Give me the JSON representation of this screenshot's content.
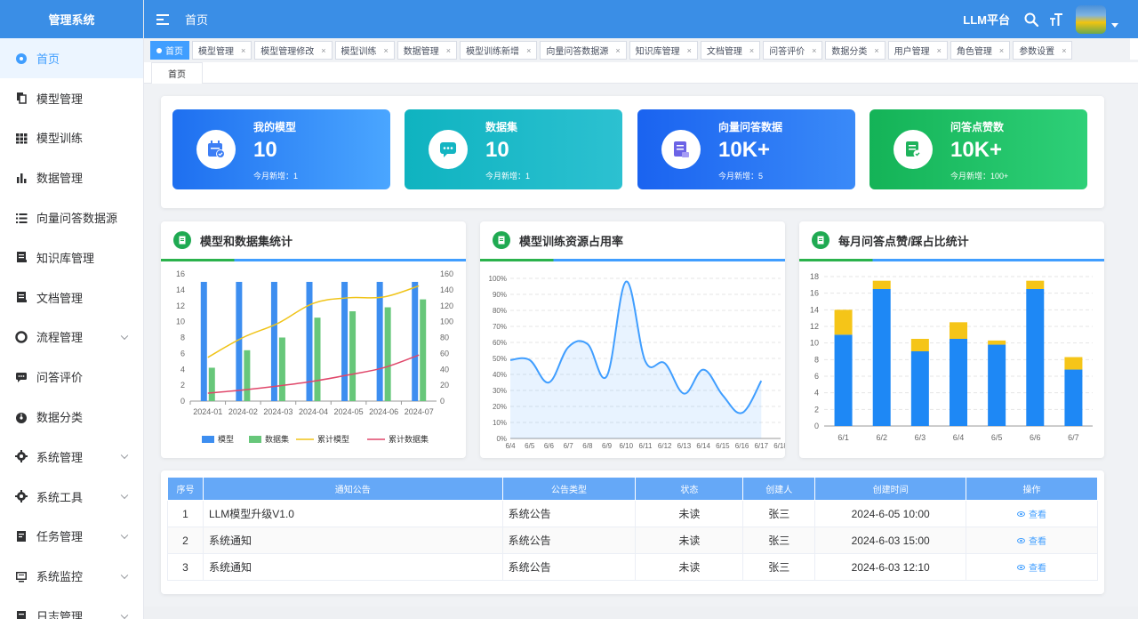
{
  "app": {
    "title": "管理系统",
    "platform": "LLM平台",
    "breadcrumb": "首页"
  },
  "sidebar": {
    "items": [
      {
        "label": "首页",
        "icon": "dashboard-icon",
        "active": true,
        "expandable": false
      },
      {
        "label": "模型管理",
        "icon": "copy-icon",
        "expandable": false
      },
      {
        "label": "模型训练",
        "icon": "grid-icon",
        "expandable": false
      },
      {
        "label": "数据管理",
        "icon": "bar-chart-icon",
        "expandable": false
      },
      {
        "label": "向量问答数据源",
        "icon": "list-icon",
        "expandable": false
      },
      {
        "label": "知识库管理",
        "icon": "book-icon",
        "expandable": false
      },
      {
        "label": "文档管理",
        "icon": "document-icon",
        "expandable": false
      },
      {
        "label": "流程管理",
        "icon": "circle-icon",
        "expandable": true
      },
      {
        "label": "问答评价",
        "icon": "comment-icon",
        "expandable": false
      },
      {
        "label": "数据分类",
        "icon": "gauge-icon",
        "expandable": false
      },
      {
        "label": "系统管理",
        "icon": "gear-icon",
        "expandable": true
      },
      {
        "label": "系统工具",
        "icon": "gear-icon",
        "expandable": true
      },
      {
        "label": "任务管理",
        "icon": "task-icon",
        "expandable": true
      },
      {
        "label": "系统监控",
        "icon": "monitor-icon",
        "expandable": true
      },
      {
        "label": "日志管理",
        "icon": "log-icon",
        "expandable": true
      }
    ]
  },
  "tags": [
    {
      "label": "首页",
      "active": true
    },
    {
      "label": "模型管理"
    },
    {
      "label": "模型管理修改"
    },
    {
      "label": "模型训练"
    },
    {
      "label": "数据管理"
    },
    {
      "label": "模型训练新增"
    },
    {
      "label": "向量问答数据源"
    },
    {
      "label": "知识库管理"
    },
    {
      "label": "文档管理"
    },
    {
      "label": "问答评价"
    },
    {
      "label": "数据分类"
    },
    {
      "label": "用户管理"
    },
    {
      "label": "角色管理"
    },
    {
      "label": "参数设置"
    }
  ],
  "subtab": "首页",
  "stats": [
    {
      "title": "我的模型",
      "value": "10",
      "sub": "今月新增：1",
      "gradient": [
        "#1e6ff0",
        "#4aa6ff"
      ],
      "icon": "calendar-icon",
      "icon_color": "#3d7ef5"
    },
    {
      "title": "数据集",
      "value": "10",
      "sub": "今月新增：1",
      "gradient": [
        "#0fb3c0",
        "#2cc1d1"
      ],
      "icon": "chat-icon",
      "icon_color": "#13b5c2"
    },
    {
      "title": "向量问答数据",
      "value": "10K+",
      "sub": "今月新增：5",
      "gradient": [
        "#1a63f0",
        "#3a8af8"
      ],
      "icon": "stack-icon",
      "icon_color": "#6c63e6"
    },
    {
      "title": "问答点赞数",
      "value": "10K+",
      "sub": "今月新增：100+",
      "gradient": [
        "#14b357",
        "#2ed078"
      ],
      "icon": "doc-check-icon",
      "icon_color": "#1fb35c"
    }
  ],
  "charts": {
    "c1": {
      "title": "模型和数据集统计"
    },
    "c2": {
      "title": "模型训练资源占用率"
    },
    "c3": {
      "title": "每月问答点赞/踩占比统计"
    }
  },
  "chart_data": [
    {
      "type": "bar",
      "title": "模型和数据集统计",
      "categories": [
        "2024-01",
        "2024-02",
        "2024-03",
        "2024-04",
        "2024-05",
        "2024-06",
        "2024-07"
      ],
      "series": [
        {
          "name": "模型",
          "type": "bar",
          "axis": "left",
          "color": "#3d8ef0",
          "values": [
            15,
            15,
            15,
            15,
            15,
            15,
            15
          ]
        },
        {
          "name": "数据集",
          "type": "bar",
          "axis": "left",
          "color": "#67c77a",
          "values": [
            4.2,
            6.4,
            8,
            10.5,
            11.3,
            11.8,
            12.8
          ]
        },
        {
          "name": "累计模型",
          "type": "line",
          "axis": "right",
          "color": "#f0c419",
          "values": [
            55,
            80,
            98,
            123,
            130,
            131,
            145
          ]
        },
        {
          "name": "累计数据集",
          "type": "line",
          "axis": "right",
          "color": "#e0476a",
          "values": [
            10,
            14,
            19,
            25,
            33,
            42,
            58
          ]
        }
      ],
      "y_left": {
        "ticks": [
          "0",
          "2",
          "4",
          "6",
          "8",
          "10",
          "12",
          "14",
          "16"
        ],
        "range": [
          0,
          16
        ]
      },
      "y_right": {
        "ticks": [
          "0",
          "20",
          "40",
          "60",
          "80",
          "100",
          "120",
          "140",
          "160"
        ],
        "range": [
          0,
          160
        ]
      },
      "legend": "bottom",
      "grid": false
    },
    {
      "type": "area",
      "title": "模型训练资源占用率",
      "x": [
        "6/4",
        "6/5",
        "6/6",
        "6/7",
        "6/8",
        "6/9",
        "6/10",
        "6/11",
        "6/12",
        "6/13",
        "6/14",
        "6/15",
        "6/16",
        "6/17",
        "6/18"
      ],
      "values": [
        49,
        49,
        35,
        57,
        59,
        39,
        98,
        48,
        47,
        28,
        43,
        27,
        16,
        36,
        null
      ],
      "y_ticks": [
        "0%",
        "10%",
        "20%",
        "30%",
        "40%",
        "50%",
        "60%",
        "70%",
        "80%",
        "90%",
        "100%"
      ],
      "ylim": [
        0,
        100
      ],
      "color": "#409eff",
      "grid": true
    },
    {
      "type": "bar",
      "stacked": true,
      "title": "每月问答点赞/踩占比统计",
      "categories": [
        "6/1",
        "6/2",
        "6/3",
        "6/4",
        "6/5",
        "6/6",
        "6/7"
      ],
      "series": [
        {
          "color": "#1e88f5",
          "values": [
            11,
            16.5,
            9,
            10.5,
            9.8,
            16.5,
            6.8
          ]
        },
        {
          "color": "#f5c518",
          "values": [
            3,
            1,
            1.5,
            2,
            0.5,
            1,
            1.5
          ]
        }
      ],
      "y_ticks": [
        "0",
        "2",
        "4",
        "6",
        "8",
        "10",
        "12",
        "14",
        "16",
        "18"
      ],
      "ylim": [
        0,
        18
      ],
      "grid": true
    }
  ],
  "table": {
    "headers": [
      "序号",
      "通知公告",
      "公告类型",
      "状态",
      "创建人",
      "创建时间",
      "操作"
    ],
    "rows": [
      {
        "no": "1",
        "title": "LLM模型升级V1.0",
        "type": "系统公告",
        "status": "未读",
        "creator": "张三",
        "time": "2024-6-05  10:00",
        "action": "查看"
      },
      {
        "no": "2",
        "title": "系统通知",
        "type": "系统公告",
        "status": "未读",
        "creator": "张三",
        "time": "2024-6-03  15:00",
        "action": "查看"
      },
      {
        "no": "3",
        "title": "系统通知",
        "type": "系统公告",
        "status": "未读",
        "creator": "张三",
        "time": "2024-6-03  12:10",
        "action": "查看"
      }
    ]
  }
}
